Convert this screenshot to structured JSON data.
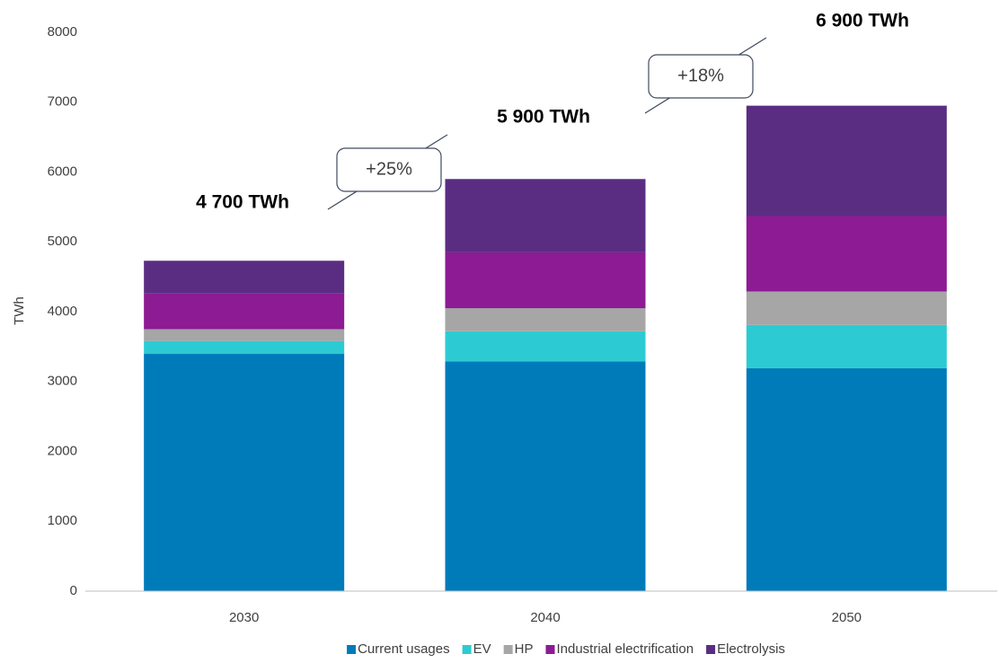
{
  "chart_data": {
    "type": "stacked_bar",
    "ylabel": "TWh",
    "categories": [
      "2030",
      "2040",
      "2050"
    ],
    "series": [
      {
        "name": "Current usages",
        "color": "#007bba",
        "values": [
          3400,
          3290,
          3190
        ]
      },
      {
        "name": "EV",
        "color": "#2ccbd3",
        "values": [
          180,
          430,
          620
        ]
      },
      {
        "name": "HP",
        "color": "#a6a6a6",
        "values": [
          170,
          330,
          480
        ]
      },
      {
        "name": "Industrial electrification",
        "color": "#8d1b93",
        "values": [
          510,
          800,
          1080
        ]
      },
      {
        "name": "Electrolysis",
        "color": "#5a2d83",
        "values": [
          470,
          1050,
          1580
        ]
      }
    ],
    "ylim": [
      0,
      8000
    ],
    "yticks": [
      0,
      1000,
      2000,
      3000,
      4000,
      5000,
      6000,
      7000,
      8000
    ],
    "total_labels": [
      "4 700 TWh",
      "5 900 TWh",
      "6 900 TWh"
    ],
    "growth_labels": [
      "+25%",
      "+18%"
    ],
    "legend": "bottom"
  }
}
